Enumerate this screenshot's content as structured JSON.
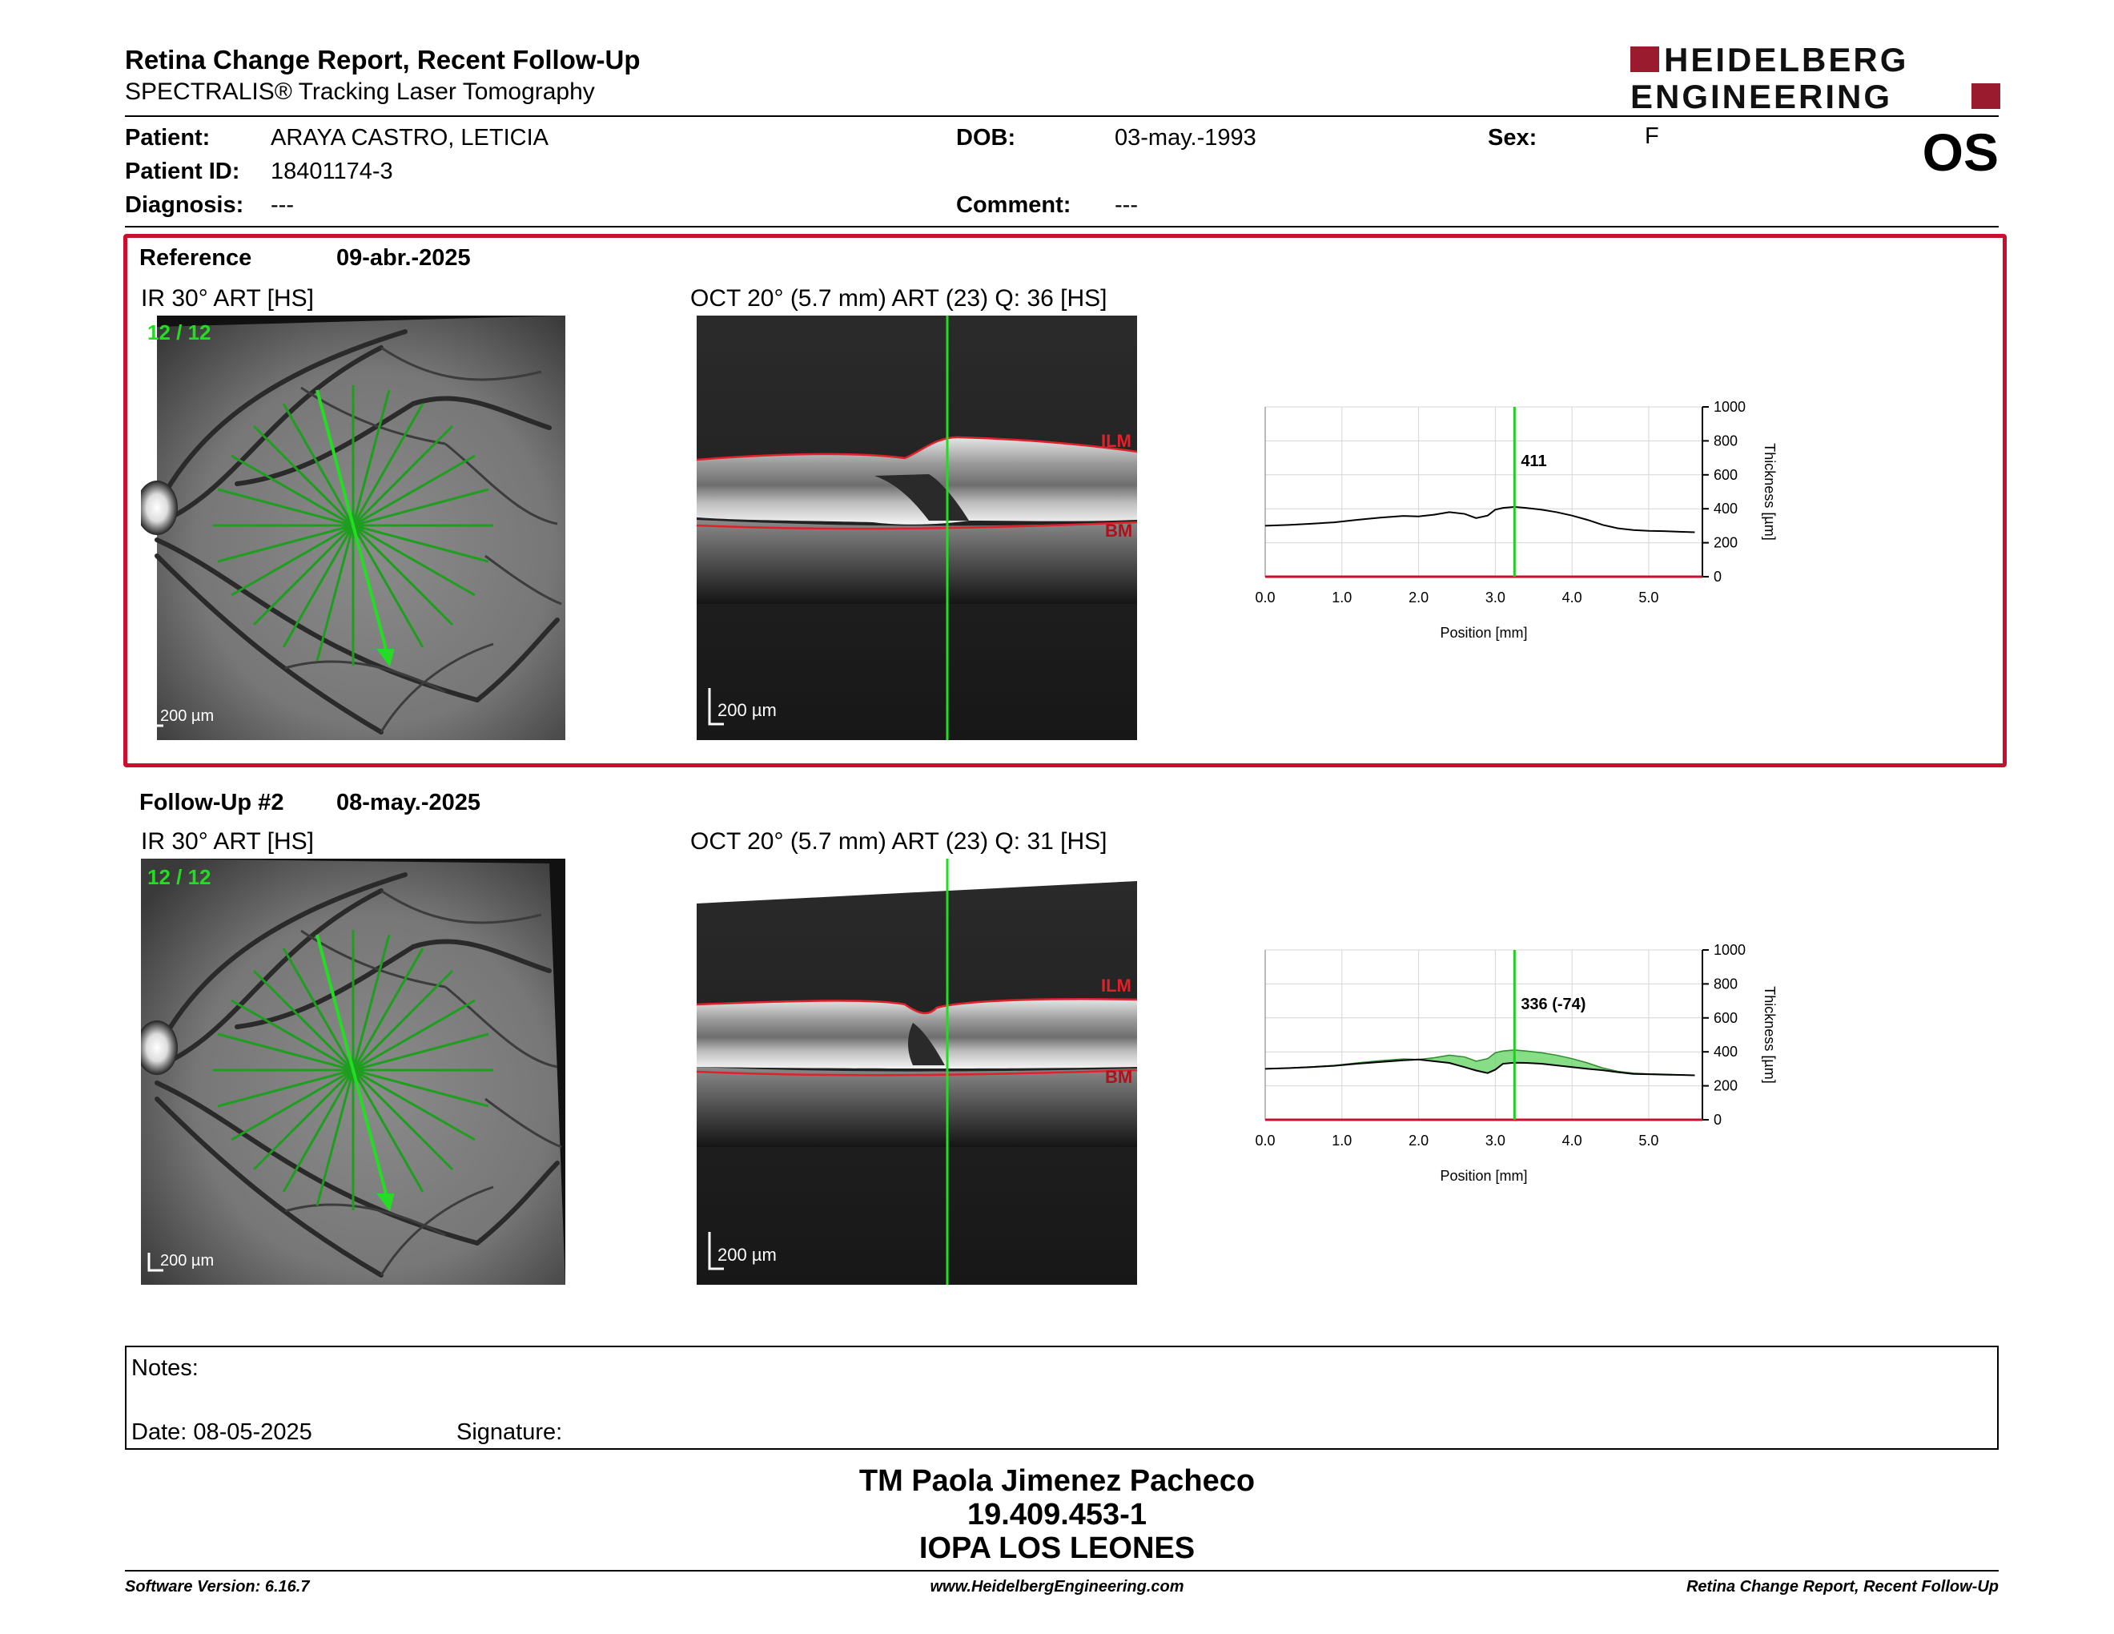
{
  "header": {
    "title": "Retina Change Report, Recent Follow-Up",
    "subtitle": "SPECTRALIS® Tracking Laser Tomography",
    "logo_line1": "HEIDELBERG",
    "logo_line2": "ENGINEERING",
    "eye": "OS"
  },
  "patient": {
    "name_label": "Patient:",
    "name": "ARAYA CASTRO, LETICIA",
    "id_label": "Patient ID:",
    "id": "18401174-3",
    "diagnosis_label": "Diagnosis:",
    "diagnosis": "---",
    "dob_label": "DOB:",
    "dob": "03-may.-1993",
    "comment_label": "Comment:",
    "comment": "---",
    "sex_label": "Sex:",
    "sex": "F"
  },
  "reference": {
    "label": "Reference",
    "date": "09-abr.-2025",
    "ir_caption": "IR 30° ART [HS]",
    "oct_caption": "OCT 20° (5.7 mm) ART (23) Q: 36 [HS]",
    "frame_counter": "12 / 12",
    "scale_ir": "200 µm",
    "scale_oct": "200 µm",
    "ilm": "ILM",
    "bm": "BM"
  },
  "followup": {
    "label": "Follow-Up #2",
    "date": "08-may.-2025",
    "ir_caption": "IR 30° ART [HS]",
    "oct_caption": "OCT 20° (5.7 mm) ART (23) Q: 31 [HS]",
    "frame_counter": "12 / 12",
    "scale_ir": "200 µm",
    "scale_oct": "200 µm",
    "ilm": "ILM",
    "bm": "BM"
  },
  "chart_data": [
    {
      "type": "line",
      "xlabel": "Position [mm]",
      "ylabel": "Thickness [µm]",
      "xlim": [
        0,
        5.7
      ],
      "ylim": [
        0,
        1000
      ],
      "xticks": [
        "0.0",
        "1.0",
        "2.0",
        "3.0",
        "4.0",
        "5.0"
      ],
      "yticks": [
        "0",
        "200",
        "400",
        "600",
        "800",
        "1000"
      ],
      "cursor_x": 3.25,
      "cursor_label": "411",
      "series": [
        {
          "x": [
            0.0,
            0.3,
            0.6,
            0.9,
            1.2,
            1.5,
            1.8,
            2.0,
            2.2,
            2.4,
            2.6,
            2.75,
            2.9,
            3.0,
            3.1,
            3.25,
            3.4,
            3.6,
            3.8,
            4.0,
            4.2,
            4.4,
            4.6,
            4.8,
            5.0,
            5.2,
            5.4,
            5.6
          ],
          "y": [
            300,
            305,
            312,
            320,
            335,
            348,
            358,
            355,
            365,
            380,
            370,
            345,
            360,
            395,
            405,
            411,
            405,
            395,
            380,
            360,
            335,
            305,
            285,
            275,
            270,
            268,
            265,
            262
          ]
        }
      ]
    },
    {
      "type": "area",
      "xlabel": "Position [mm]",
      "ylabel": "Thickness [µm]",
      "xlim": [
        0,
        5.7
      ],
      "ylim": [
        0,
        1000
      ],
      "xticks": [
        "0.0",
        "1.0",
        "2.0",
        "3.0",
        "4.0",
        "5.0"
      ],
      "yticks": [
        "0",
        "200",
        "400",
        "600",
        "800",
        "1000"
      ],
      "cursor_x": 3.25,
      "cursor_label": "336 (-74)",
      "fill_color": "#5fd35f",
      "series": [
        {
          "x": [
            0.0,
            0.3,
            0.6,
            0.9,
            1.2,
            1.5,
            1.8,
            2.0,
            2.2,
            2.4,
            2.6,
            2.75,
            2.9,
            3.0,
            3.1,
            3.25,
            3.4,
            3.6,
            3.8,
            4.0,
            4.2,
            4.4,
            4.6,
            4.8,
            5.0,
            5.2,
            5.4,
            5.6
          ],
          "y": [
            300,
            305,
            312,
            320,
            335,
            348,
            358,
            355,
            365,
            380,
            370,
            345,
            360,
            395,
            405,
            411,
            405,
            395,
            380,
            360,
            335,
            305,
            285,
            275,
            270,
            268,
            265,
            262
          ]
        },
        {
          "x": [
            0.0,
            0.3,
            0.6,
            0.9,
            1.2,
            1.5,
            1.8,
            2.0,
            2.2,
            2.4,
            2.6,
            2.75,
            2.9,
            3.0,
            3.1,
            3.25,
            3.4,
            3.6,
            3.8,
            4.0,
            4.2,
            4.4,
            4.6,
            4.8,
            5.0,
            5.2,
            5.4,
            5.6
          ],
          "y": [
            300,
            304,
            310,
            318,
            330,
            340,
            350,
            355,
            345,
            335,
            310,
            290,
            275,
            295,
            330,
            336,
            335,
            330,
            320,
            310,
            300,
            292,
            280,
            270,
            268,
            266,
            264,
            262
          ]
        }
      ]
    }
  ],
  "notes": {
    "notes_label": "Notes:",
    "date_label": "Date: 08-05-2025",
    "signature_label": "Signature:"
  },
  "signature_block": {
    "name": "TM Paola Jimenez Pacheco",
    "rut": "19.409.453-1",
    "institution": "IOPA LOS LEONES"
  },
  "footer": {
    "software": "Software Version: 6.16.7",
    "website": "www.HeidelbergEngineering.com",
    "report": "Retina Change Report, Recent Follow-Up"
  }
}
